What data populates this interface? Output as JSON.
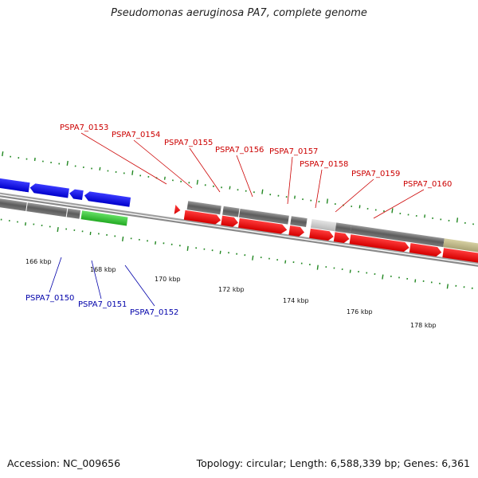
{
  "title": "Pseudomonas aeruginosa PA7, complete genome",
  "footer": {
    "accession": "Accession: NC_009656",
    "summary": "Topology: circular; Length: 6,588,339 bp; Genes: 6,361"
  },
  "scale": {
    "unit": "kbp",
    "ticks": [
      {
        "label": "166 kbp",
        "kbp": 166
      },
      {
        "label": "168 kbp",
        "kbp": 168
      },
      {
        "label": "170 kbp",
        "kbp": 170
      },
      {
        "label": "172 kbp",
        "kbp": 172
      },
      {
        "label": "174 kbp",
        "kbp": 174
      },
      {
        "label": "176 kbp",
        "kbp": 176
      },
      {
        "label": "178 kbp",
        "kbp": 178
      }
    ]
  },
  "genes": {
    "plus_strand": [
      {
        "label": "PSPA7_0153"
      },
      {
        "label": "PSPA7_0154"
      },
      {
        "label": "PSPA7_0155"
      },
      {
        "label": "PSPA7_0156"
      },
      {
        "label": "PSPA7_0157"
      },
      {
        "label": "PSPA7_0158"
      },
      {
        "label": "PSPA7_0159"
      },
      {
        "label": "PSPA7_0160"
      }
    ],
    "minus_strand": [
      {
        "label": "PSPA7_0150"
      },
      {
        "label": "PSPA7_0151"
      },
      {
        "label": "PSPA7_0152"
      }
    ]
  },
  "colors": {
    "plus_gene": "#ee0000",
    "minus_gene": "#0000ee",
    "rna_gene": "#33cc33",
    "gene_box": "#6e6e6e",
    "pseudo_box": "#bdb78a",
    "backbone": "#8a8a8a",
    "tick_green": "#228822",
    "plus_label": "#cc0000",
    "minus_label": "#0000aa"
  }
}
